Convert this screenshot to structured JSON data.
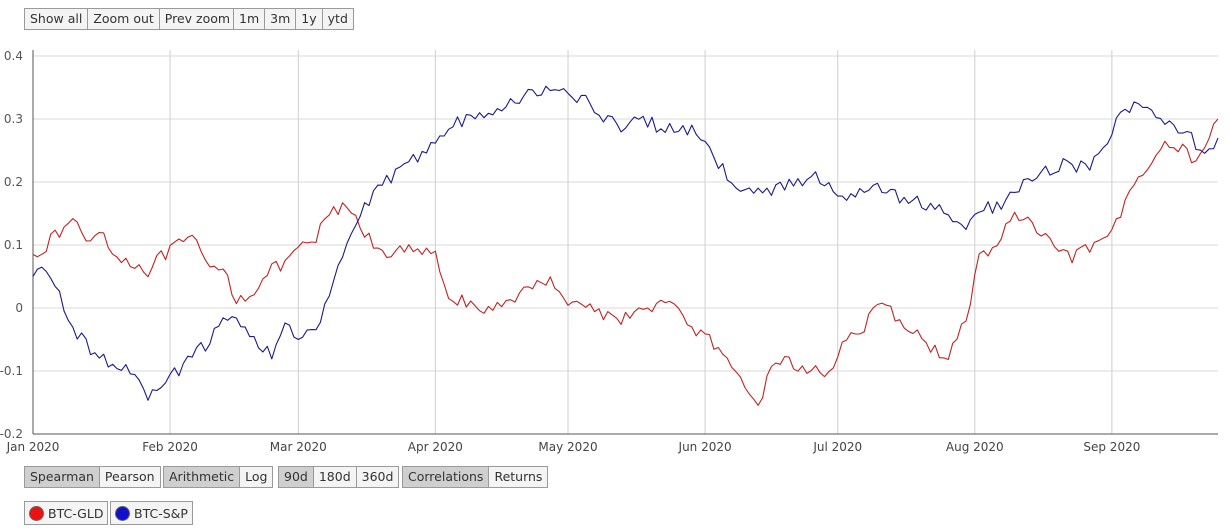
{
  "toolbar_top": {
    "zoom_buttons": [
      "Show all",
      "Zoom out",
      "Prev zoom"
    ],
    "range_buttons": [
      "1m",
      "3m",
      "1y",
      "ytd"
    ]
  },
  "toolbar_bottom": {
    "method_buttons": [
      "Spearman",
      "Pearson"
    ],
    "method_active": "Spearman",
    "scale_buttons": [
      "Arithmetic",
      "Log"
    ],
    "scale_active": "Arithmetic",
    "window_buttons": [
      "90d",
      "180d",
      "360d"
    ],
    "window_active": "90d",
    "view_buttons": [
      "Correlations",
      "Returns"
    ],
    "view_active": "Correlations"
  },
  "legend": [
    {
      "label": "BTC-GLD",
      "color": "#ee1111"
    },
    {
      "label": "BTC-S&P",
      "color": "#1111cc"
    }
  ],
  "chart_data": {
    "type": "line",
    "ylim": [
      -0.2,
      0.4
    ],
    "yticks": [
      -0.2,
      -0.1,
      0,
      0.1,
      0.2,
      0.3,
      0.4
    ],
    "ytick_labels": [
      "-0.2",
      "-0.1",
      "0",
      "0.1",
      "0.2",
      "0.3",
      "0.4"
    ],
    "xlim": [
      "2020-01-01",
      "2020-09-25"
    ],
    "xticks": [
      "2020-01-01",
      "2020-02-01",
      "2020-03-01",
      "2020-04-01",
      "2020-05-01",
      "2020-06-01",
      "2020-07-01",
      "2020-08-01",
      "2020-09-01"
    ],
    "xtick_labels": [
      "Jan 2020",
      "Feb 2020",
      "Mar 2020",
      "Apr 2020",
      "May 2020",
      "Jun 2020",
      "Jul 2020",
      "Aug 2020",
      "Sep 2020"
    ],
    "grid": true,
    "series": [
      {
        "name": "BTC-GLD",
        "color": "#c22222",
        "x": [
          "2020-01-01",
          "2020-01-04",
          "2020-01-07",
          "2020-01-10",
          "2020-01-13",
          "2020-01-17",
          "2020-01-20",
          "2020-01-24",
          "2020-01-27",
          "2020-01-30",
          "2020-02-03",
          "2020-02-06",
          "2020-02-10",
          "2020-02-13",
          "2020-02-16",
          "2020-02-20",
          "2020-02-24",
          "2020-02-27",
          "2020-03-01",
          "2020-03-05",
          "2020-03-08",
          "2020-03-12",
          "2020-03-15",
          "2020-03-18",
          "2020-03-21",
          "2020-03-25",
          "2020-03-29",
          "2020-04-01",
          "2020-04-04",
          "2020-04-08",
          "2020-04-11",
          "2020-04-15",
          "2020-04-19",
          "2020-04-23",
          "2020-04-27",
          "2020-05-01",
          "2020-05-05",
          "2020-05-09",
          "2020-05-13",
          "2020-05-17",
          "2020-05-21",
          "2020-05-25",
          "2020-05-29",
          "2020-06-02",
          "2020-06-06",
          "2020-06-10",
          "2020-06-13",
          "2020-06-17",
          "2020-06-21",
          "2020-06-25",
          "2020-06-29",
          "2020-07-02",
          "2020-07-06",
          "2020-07-10",
          "2020-07-14",
          "2020-07-18",
          "2020-07-22",
          "2020-07-26",
          "2020-07-30",
          "2020-08-02",
          "2020-08-06",
          "2020-08-10",
          "2020-08-14",
          "2020-08-18",
          "2020-08-22",
          "2020-08-26",
          "2020-08-30",
          "2020-09-03",
          "2020-09-07",
          "2020-09-11",
          "2020-09-15",
          "2020-09-19",
          "2020-09-22",
          "2020-09-25"
        ],
        "y": [
          0.085,
          0.1,
          0.12,
          0.14,
          0.11,
          0.12,
          0.08,
          0.07,
          0.06,
          0.08,
          0.1,
          0.11,
          0.06,
          0.07,
          0.01,
          0.03,
          0.06,
          0.07,
          0.09,
          0.11,
          0.15,
          0.16,
          0.13,
          0.1,
          0.09,
          0.09,
          0.09,
          0.08,
          0.02,
          0.01,
          -0.015,
          0.005,
          0.02,
          0.03,
          0.05,
          0.01,
          0.005,
          -0.01,
          -0.015,
          -0.01,
          0.01,
          0.0,
          -0.03,
          -0.05,
          -0.09,
          -0.13,
          -0.15,
          -0.08,
          -0.09,
          -0.1,
          -0.105,
          -0.05,
          -0.04,
          0.0,
          -0.01,
          -0.04,
          -0.06,
          -0.08,
          -0.02,
          0.08,
          0.1,
          0.15,
          0.13,
          0.1,
          0.08,
          0.09,
          0.1,
          0.15,
          0.21,
          0.25,
          0.26,
          0.24,
          0.25,
          0.3
        ]
      },
      {
        "name": "BTC-S&P",
        "color": "#1a1a8c",
        "x": [
          "2020-01-01",
          "2020-01-04",
          "2020-01-07",
          "2020-01-10",
          "2020-01-13",
          "2020-01-17",
          "2020-01-20",
          "2020-01-24",
          "2020-01-27",
          "2020-01-30",
          "2020-02-03",
          "2020-02-06",
          "2020-02-10",
          "2020-02-13",
          "2020-02-16",
          "2020-02-20",
          "2020-02-24",
          "2020-02-27",
          "2020-03-01",
          "2020-03-05",
          "2020-03-08",
          "2020-03-12",
          "2020-03-15",
          "2020-03-18",
          "2020-03-21",
          "2020-03-25",
          "2020-03-29",
          "2020-04-01",
          "2020-04-04",
          "2020-04-08",
          "2020-04-11",
          "2020-04-15",
          "2020-04-19",
          "2020-04-23",
          "2020-04-27",
          "2020-05-01",
          "2020-05-05",
          "2020-05-09",
          "2020-05-13",
          "2020-05-17",
          "2020-05-21",
          "2020-05-25",
          "2020-05-29",
          "2020-06-02",
          "2020-06-06",
          "2020-06-10",
          "2020-06-13",
          "2020-06-17",
          "2020-06-21",
          "2020-06-25",
          "2020-06-29",
          "2020-07-02",
          "2020-07-06",
          "2020-07-10",
          "2020-07-14",
          "2020-07-18",
          "2020-07-22",
          "2020-07-26",
          "2020-07-30",
          "2020-08-02",
          "2020-08-06",
          "2020-08-10",
          "2020-08-14",
          "2020-08-18",
          "2020-08-22",
          "2020-08-26",
          "2020-08-30",
          "2020-09-03",
          "2020-09-07",
          "2020-09-11",
          "2020-09-15",
          "2020-09-19",
          "2020-09-22",
          "2020-09-25"
        ],
        "y": [
          0.05,
          0.06,
          0.02,
          -0.03,
          -0.06,
          -0.08,
          -0.09,
          -0.11,
          -0.14,
          -0.12,
          -0.1,
          -0.08,
          -0.05,
          -0.02,
          -0.01,
          -0.05,
          -0.07,
          -0.03,
          -0.05,
          -0.04,
          0.02,
          0.1,
          0.15,
          0.18,
          0.2,
          0.22,
          0.25,
          0.27,
          0.29,
          0.3,
          0.31,
          0.32,
          0.33,
          0.34,
          0.35,
          0.34,
          0.33,
          0.3,
          0.29,
          0.3,
          0.29,
          0.28,
          0.28,
          0.25,
          0.21,
          0.19,
          0.18,
          0.19,
          0.2,
          0.21,
          0.2,
          0.17,
          0.18,
          0.19,
          0.18,
          0.17,
          0.16,
          0.15,
          0.12,
          0.16,
          0.16,
          0.19,
          0.21,
          0.22,
          0.23,
          0.22,
          0.25,
          0.31,
          0.32,
          0.31,
          0.28,
          0.27,
          0.24,
          0.27
        ]
      }
    ]
  }
}
